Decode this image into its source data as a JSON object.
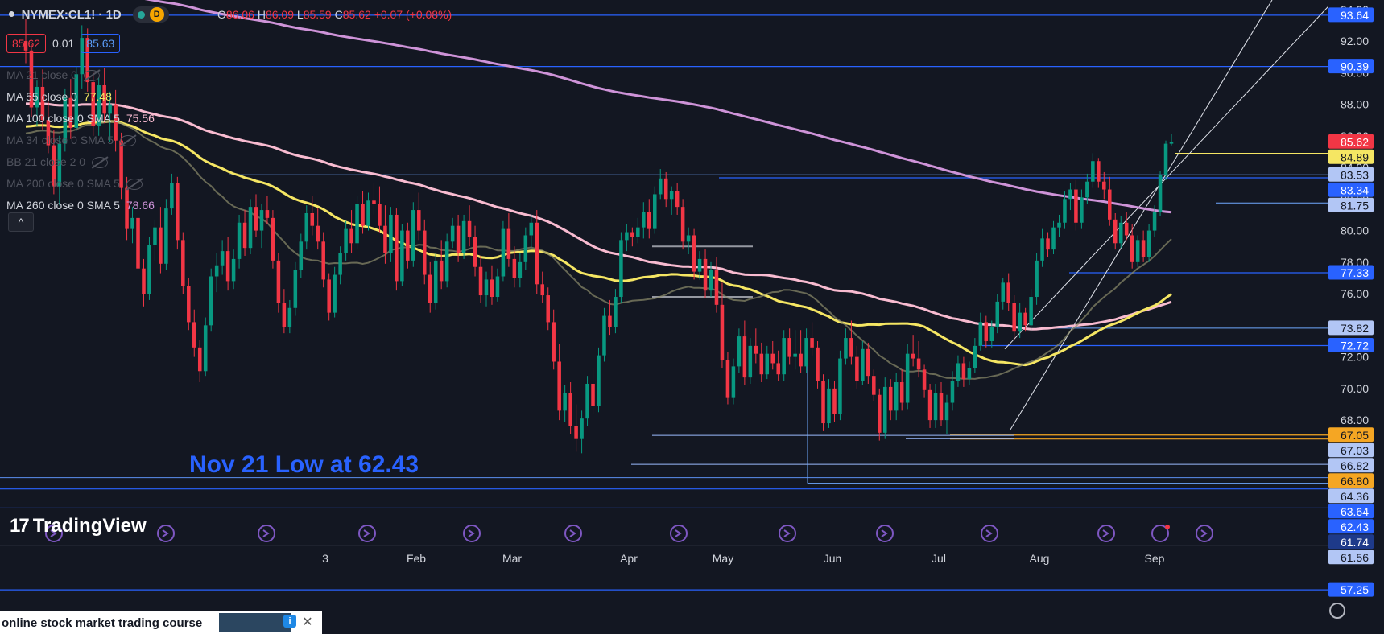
{
  "header": {
    "symbol": "NYMEX:CL1! · 1D",
    "pill_label": "D",
    "ohlc": {
      "o_label": "O",
      "o": "86.06",
      "h_label": "H",
      "h": "86.09",
      "l_label": "L",
      "l": "85.59",
      "c_label": "C",
      "c": "85.62",
      "change": "+0.07 (+0.08%)"
    }
  },
  "bidask": {
    "bid": "85.62",
    "spread": "0.01",
    "ask": "85.63"
  },
  "legend": [
    {
      "label": "MA 21 close 0",
      "value": "",
      "hidden": true
    },
    {
      "label": "MA 55 close 0",
      "value": "77.48",
      "hidden": false,
      "color": "#f5e663"
    },
    {
      "label": "MA 100 close 0 SMA 5",
      "value": "75.56",
      "hidden": false,
      "color": "#f8bbd0"
    },
    {
      "label": "MA 34 close 0 SMA 5",
      "value": "",
      "hidden": true
    },
    {
      "label": "BB 21 close 2 0",
      "value": "",
      "hidden": true
    },
    {
      "label": "MA 200 close 0 SMA 5",
      "value": "",
      "hidden": true
    },
    {
      "label": "MA 260 close 0 SMA 5",
      "value": "78.66",
      "hidden": false,
      "color": "#ce93d8"
    }
  ],
  "collapse_label": "^",
  "logo": {
    "mark": "17",
    "text": "TradingView"
  },
  "ad": {
    "text": "online stock market trading course",
    "info": "i",
    "close": "✕"
  },
  "chart_data": {
    "type": "candlestick",
    "annotation": "Nov 21 Low at 62.43",
    "y_axis_ticks": [
      "94.00",
      "92.00",
      "90.00",
      "88.00",
      "86.00",
      "84.00",
      "82.00",
      "80.00",
      "78.00",
      "76.00",
      "74.00",
      "72.00",
      "70.00",
      "68.00"
    ],
    "ylim": [
      56.9,
      94.6
    ],
    "x_axis_labels": [
      "3",
      "Feb",
      "Mar",
      "Apr",
      "May",
      "Jun",
      "Jul",
      "Aug",
      "Sep"
    ],
    "price_labels": [
      {
        "value": "93.64",
        "kind": "hline"
      },
      {
        "value": "90.39",
        "kind": "hline"
      },
      {
        "value": "85.62",
        "kind": "last"
      },
      {
        "value": "84.89",
        "kind": "yellow"
      },
      {
        "value": "83.53",
        "kind": "light"
      },
      {
        "value": "83.34",
        "kind": "hline"
      },
      {
        "value": "81.75",
        "kind": "light"
      },
      {
        "value": "77.33",
        "kind": "hline"
      },
      {
        "value": "73.82",
        "kind": "light"
      },
      {
        "value": "72.72",
        "kind": "hline"
      },
      {
        "value": "67.05",
        "kind": "orange"
      },
      {
        "value": "67.03",
        "kind": "light"
      },
      {
        "value": "66.82",
        "kind": "light"
      },
      {
        "value": "66.80",
        "kind": "orange"
      },
      {
        "value": "64.36",
        "kind": "light"
      },
      {
        "value": "63.64",
        "kind": "hline"
      },
      {
        "value": "62.43",
        "kind": "hline"
      },
      {
        "value": "61.74",
        "kind": "dark"
      },
      {
        "value": "61.56",
        "kind": "light"
      },
      {
        "value": "57.25",
        "kind": "hline"
      }
    ],
    "candles": [
      [
        92.0,
        93.4,
        90.6,
        91.4
      ],
      [
        91.4,
        91.8,
        87.2,
        87.8
      ],
      [
        87.8,
        89.5,
        86.6,
        89.1
      ],
      [
        89.1,
        90.2,
        86.4,
        87.0
      ],
      [
        87.0,
        88.5,
        84.9,
        85.4
      ],
      [
        85.4,
        86.4,
        82.3,
        82.8
      ],
      [
        82.8,
        86.0,
        81.6,
        85.5
      ],
      [
        85.5,
        89.0,
        85.0,
        88.4
      ],
      [
        88.4,
        89.6,
        85.8,
        86.5
      ],
      [
        86.5,
        90.4,
        86.3,
        89.9
      ],
      [
        89.9,
        93.0,
        89.0,
        92.2
      ],
      [
        92.2,
        92.8,
        88.8,
        89.4
      ],
      [
        89.4,
        90.0,
        86.0,
        86.6
      ],
      [
        86.6,
        89.7,
        86.0,
        89.2
      ],
      [
        89.2,
        90.3,
        86.8,
        87.4
      ],
      [
        87.4,
        88.8,
        85.6,
        88.0
      ],
      [
        88.0,
        88.9,
        85.0,
        85.7
      ],
      [
        85.7,
        86.2,
        82.0,
        82.7
      ],
      [
        82.7,
        83.4,
        79.4,
        80.1
      ],
      [
        80.1,
        81.5,
        79.2,
        80.8
      ],
      [
        80.8,
        81.6,
        77.0,
        77.6
      ],
      [
        77.6,
        78.2,
        75.2,
        76.0
      ],
      [
        76.0,
        79.6,
        75.6,
        79.1
      ],
      [
        79.1,
        80.7,
        78.1,
        80.2
      ],
      [
        80.2,
        81.5,
        77.3,
        77.9
      ],
      [
        77.9,
        82.0,
        77.5,
        81.4
      ],
      [
        81.4,
        83.6,
        81.0,
        83.0
      ],
      [
        83.0,
        83.4,
        78.8,
        79.4
      ],
      [
        79.4,
        79.9,
        76.0,
        76.5
      ],
      [
        76.5,
        77.0,
        73.7,
        74.2
      ],
      [
        74.2,
        75.0,
        72.0,
        72.6
      ],
      [
        72.6,
        73.1,
        70.4,
        71.1
      ],
      [
        71.1,
        74.5,
        70.8,
        74.0
      ],
      [
        74.0,
        77.6,
        73.6,
        77.1
      ],
      [
        77.1,
        78.6,
        76.1,
        77.8
      ],
      [
        77.8,
        79.4,
        77.2,
        78.7
      ],
      [
        78.7,
        79.6,
        76.2,
        76.8
      ],
      [
        76.8,
        78.8,
        76.3,
        78.2
      ],
      [
        78.2,
        81.0,
        77.6,
        80.5
      ],
      [
        80.5,
        81.3,
        78.4,
        78.9
      ],
      [
        78.9,
        82.0,
        78.5,
        81.5
      ],
      [
        81.5,
        82.3,
        79.6,
        80.0
      ],
      [
        80.0,
        81.7,
        78.9,
        81.3
      ],
      [
        81.3,
        82.2,
        80.4,
        80.8
      ],
      [
        80.8,
        81.3,
        77.6,
        78.1
      ],
      [
        78.1,
        78.6,
        74.8,
        75.4
      ],
      [
        75.4,
        76.3,
        73.5,
        73.9
      ],
      [
        73.9,
        75.6,
        73.5,
        75.1
      ],
      [
        75.1,
        78.0,
        74.6,
        77.5
      ],
      [
        77.5,
        79.8,
        77.0,
        79.3
      ],
      [
        79.3,
        81.6,
        78.8,
        81.1
      ],
      [
        81.1,
        82.2,
        79.7,
        80.3
      ],
      [
        80.3,
        81.4,
        78.8,
        79.3
      ],
      [
        79.3,
        79.9,
        76.4,
        76.9
      ],
      [
        76.9,
        77.3,
        74.3,
        74.8
      ],
      [
        74.8,
        77.7,
        74.5,
        77.2
      ],
      [
        77.2,
        79.0,
        76.6,
        78.6
      ],
      [
        78.6,
        80.6,
        78.1,
        80.1
      ],
      [
        80.1,
        81.3,
        78.6,
        79.2
      ],
      [
        79.2,
        82.2,
        78.8,
        81.7
      ],
      [
        81.7,
        82.5,
        79.8,
        80.3
      ],
      [
        80.3,
        82.4,
        80.0,
        81.9
      ],
      [
        81.9,
        83.0,
        81.0,
        81.7
      ],
      [
        81.7,
        82.8,
        79.9,
        80.3
      ],
      [
        80.3,
        81.6,
        77.9,
        78.6
      ],
      [
        78.6,
        81.5,
        78.0,
        81.0
      ],
      [
        81.0,
        81.4,
        76.2,
        76.8
      ],
      [
        76.8,
        80.4,
        76.5,
        80.0
      ],
      [
        80.0,
        80.5,
        77.6,
        78.1
      ],
      [
        78.1,
        81.8,
        77.7,
        81.3
      ],
      [
        81.3,
        82.4,
        79.4,
        80.0
      ],
      [
        80.0,
        80.7,
        76.6,
        77.2
      ],
      [
        77.2,
        78.0,
        74.8,
        75.4
      ],
      [
        75.4,
        78.6,
        75.0,
        78.1
      ],
      [
        78.1,
        79.4,
        76.3,
        76.8
      ],
      [
        76.8,
        79.8,
        76.4,
        79.3
      ],
      [
        79.3,
        80.8,
        78.9,
        80.3
      ],
      [
        80.3,
        81.0,
        78.0,
        78.6
      ],
      [
        78.6,
        81.0,
        78.2,
        80.6
      ],
      [
        80.6,
        81.6,
        79.0,
        79.6
      ],
      [
        79.6,
        80.3,
        77.1,
        77.7
      ],
      [
        77.7,
        78.4,
        75.4,
        75.9
      ],
      [
        75.9,
        77.4,
        75.2,
        76.9
      ],
      [
        76.9,
        77.8,
        75.3,
        75.8
      ],
      [
        75.8,
        77.6,
        75.5,
        77.1
      ],
      [
        77.1,
        80.6,
        76.8,
        80.1
      ],
      [
        80.1,
        81.1,
        77.7,
        78.2
      ],
      [
        78.2,
        79.0,
        76.4,
        77.0
      ],
      [
        77.0,
        78.6,
        76.4,
        78.0
      ],
      [
        78.0,
        80.2,
        77.5,
        79.7
      ],
      [
        79.7,
        81.0,
        78.8,
        80.5
      ],
      [
        80.5,
        81.3,
        76.0,
        76.6
      ],
      [
        76.6,
        77.4,
        75.4,
        75.9
      ],
      [
        75.9,
        76.4,
        73.7,
        74.2
      ],
      [
        74.2,
        75.0,
        71.2,
        71.7
      ],
      [
        71.7,
        72.8,
        68.0,
        68.6
      ],
      [
        68.6,
        70.2,
        67.9,
        69.7
      ],
      [
        69.7,
        70.4,
        67.1,
        67.6
      ],
      [
        67.6,
        69.0,
        66.0,
        66.8
      ],
      [
        66.8,
        68.6,
        65.9,
        68.1
      ],
      [
        68.1,
        70.8,
        67.6,
        70.3
      ],
      [
        70.3,
        71.3,
        68.4,
        68.9
      ],
      [
        68.9,
        72.6,
        68.5,
        72.1
      ],
      [
        72.1,
        75.1,
        71.7,
        74.6
      ],
      [
        74.6,
        75.6,
        73.4,
        73.9
      ],
      [
        73.9,
        76.3,
        73.5,
        75.8
      ],
      [
        75.8,
        79.9,
        75.4,
        79.4
      ],
      [
        79.4,
        80.4,
        78.7,
        79.9
      ],
      [
        79.9,
        80.2,
        79.0,
        79.6
      ],
      [
        79.6,
        80.8,
        79.2,
        80.2
      ],
      [
        80.2,
        81.8,
        79.5,
        81.2
      ],
      [
        81.2,
        82.0,
        79.5,
        80.1
      ],
      [
        80.1,
        82.8,
        79.8,
        82.3
      ],
      [
        82.3,
        83.9,
        82.0,
        83.3
      ],
      [
        83.3,
        83.7,
        81.5,
        82.0
      ],
      [
        82.0,
        82.8,
        81.0,
        82.5
      ],
      [
        82.5,
        83.0,
        81.0,
        81.5
      ],
      [
        81.5,
        82.0,
        78.8,
        79.3
      ],
      [
        79.3,
        80.2,
        78.5,
        79.7
      ],
      [
        79.7,
        80.1,
        76.9,
        77.4
      ],
      [
        77.4,
        78.7,
        76.9,
        78.2
      ],
      [
        78.2,
        78.8,
        75.7,
        76.2
      ],
      [
        76.2,
        78.0,
        75.8,
        77.5
      ],
      [
        77.5,
        78.3,
        74.8,
        75.3
      ],
      [
        75.3,
        76.7,
        71.3,
        71.8
      ],
      [
        71.8,
        72.3,
        69.0,
        69.4
      ],
      [
        69.4,
        71.9,
        69.0,
        71.4
      ],
      [
        71.4,
        73.8,
        71.0,
        73.3
      ],
      [
        73.3,
        74.3,
        70.2,
        70.7
      ],
      [
        70.7,
        73.2,
        70.3,
        72.7
      ],
      [
        72.7,
        73.8,
        71.6,
        72.2
      ],
      [
        72.2,
        72.9,
        70.4,
        70.9
      ],
      [
        70.9,
        72.7,
        70.6,
        72.2
      ],
      [
        72.2,
        73.0,
        71.2,
        71.6
      ],
      [
        71.6,
        72.4,
        70.5,
        70.9
      ],
      [
        70.9,
        73.7,
        70.5,
        73.2
      ],
      [
        73.2,
        73.8,
        71.5,
        72.0
      ],
      [
        72.0,
        73.7,
        71.2,
        72.2
      ],
      [
        72.2,
        73.7,
        71.0,
        71.4
      ],
      [
        71.4,
        73.8,
        71.0,
        73.2
      ],
      [
        73.2,
        74.2,
        72.1,
        72.6
      ],
      [
        72.6,
        73.0,
        70.0,
        70.5
      ],
      [
        70.5,
        70.9,
        67.3,
        67.8
      ],
      [
        67.8,
        70.6,
        67.5,
        70.0
      ],
      [
        70.0,
        70.5,
        67.9,
        68.4
      ],
      [
        68.4,
        72.4,
        68.0,
        71.9
      ],
      [
        71.9,
        73.8,
        71.5,
        73.2
      ],
      [
        73.2,
        74.3,
        71.5,
        72.0
      ],
      [
        72.0,
        72.7,
        70.0,
        70.5
      ],
      [
        70.5,
        73.0,
        70.2,
        72.5
      ],
      [
        72.5,
        72.9,
        70.3,
        70.8
      ],
      [
        70.8,
        71.2,
        69.2,
        69.6
      ],
      [
        69.6,
        70.0,
        66.7,
        67.2
      ],
      [
        67.2,
        70.7,
        66.8,
        70.1
      ],
      [
        70.1,
        70.6,
        68.0,
        68.6
      ],
      [
        68.6,
        71.0,
        68.0,
        70.4
      ],
      [
        70.4,
        71.2,
        68.6,
        69.1
      ],
      [
        69.1,
        72.8,
        68.7,
        72.2
      ],
      [
        72.2,
        73.4,
        71.4,
        71.9
      ],
      [
        71.9,
        73.0,
        70.7,
        71.2
      ],
      [
        71.2,
        71.5,
        69.4,
        69.9
      ],
      [
        69.9,
        70.3,
        67.5,
        68.0
      ],
      [
        68.0,
        70.3,
        67.5,
        69.7
      ],
      [
        69.7,
        70.4,
        67.6,
        68.0
      ],
      [
        68.0,
        69.6,
        67.1,
        69.1
      ],
      [
        69.1,
        71.1,
        68.6,
        70.5
      ],
      [
        70.5,
        72.1,
        70.1,
        71.6
      ],
      [
        71.6,
        72.0,
        70.1,
        70.6
      ],
      [
        70.6,
        71.7,
        70.2,
        71.3
      ],
      [
        71.3,
        73.2,
        71.0,
        72.7
      ],
      [
        72.7,
        74.8,
        72.4,
        74.2
      ],
      [
        74.2,
        74.6,
        72.6,
        73.0
      ],
      [
        73.0,
        74.3,
        72.6,
        73.9
      ],
      [
        73.9,
        76.0,
        73.5,
        75.5
      ],
      [
        75.5,
        77.0,
        75.0,
        76.7
      ],
      [
        76.7,
        77.3,
        74.9,
        75.4
      ],
      [
        75.4,
        75.9,
        73.1,
        73.6
      ],
      [
        73.6,
        75.4,
        73.2,
        74.8
      ],
      [
        74.8,
        75.1,
        73.6,
        74.0
      ],
      [
        74.0,
        76.3,
        73.6,
        75.8
      ],
      [
        75.8,
        78.6,
        75.3,
        78.1
      ],
      [
        78.1,
        80.1,
        77.7,
        79.5
      ],
      [
        79.5,
        79.9,
        78.3,
        78.8
      ],
      [
        78.8,
        80.6,
        78.5,
        80.2
      ],
      [
        80.2,
        81.0,
        79.6,
        80.5
      ],
      [
        80.5,
        82.5,
        80.1,
        82.0
      ],
      [
        82.0,
        83.0,
        81.3,
        82.6
      ],
      [
        82.6,
        83.2,
        80.0,
        80.5
      ],
      [
        80.5,
        82.6,
        80.1,
        82.1
      ],
      [
        82.1,
        83.6,
        81.7,
        83.1
      ],
      [
        83.1,
        84.9,
        82.7,
        84.4
      ],
      [
        84.4,
        84.6,
        82.7,
        83.1
      ],
      [
        83.1,
        83.7,
        82.0,
        82.6
      ],
      [
        82.6,
        83.4,
        80.3,
        80.7
      ],
      [
        80.7,
        81.1,
        78.8,
        79.2
      ],
      [
        79.2,
        80.9,
        78.9,
        80.5
      ],
      [
        80.5,
        81.2,
        79.4,
        79.7
      ],
      [
        79.7,
        80.4,
        77.6,
        78.0
      ],
      [
        78.0,
        79.7,
        77.7,
        79.4
      ],
      [
        79.4,
        80.0,
        78.0,
        78.3
      ],
      [
        78.3,
        80.4,
        78.0,
        80.0
      ],
      [
        80.0,
        81.6,
        79.6,
        81.2
      ],
      [
        81.2,
        83.8,
        80.9,
        83.5
      ],
      [
        83.5,
        85.7,
        83.2,
        85.5
      ],
      [
        85.5,
        86.1,
        85.4,
        85.6
      ]
    ]
  }
}
